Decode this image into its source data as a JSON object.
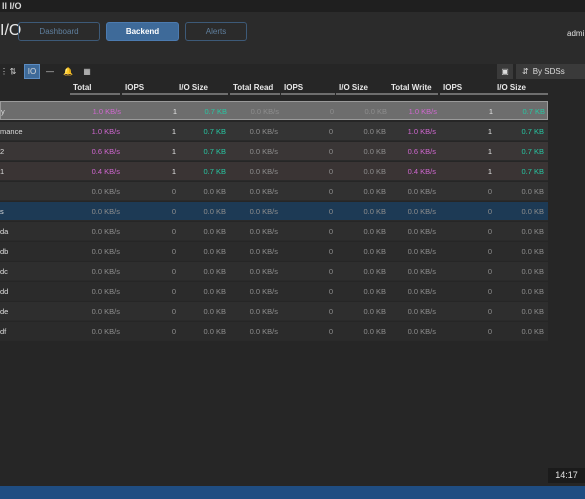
{
  "window": {
    "title": "ll I/O"
  },
  "page": {
    "title": "I/O"
  },
  "tabs": [
    {
      "label": "Dashboard",
      "state": "inactive"
    },
    {
      "label": "Backend",
      "state": "active"
    },
    {
      "label": "Alerts",
      "state": "inactive"
    }
  ],
  "user": {
    "name": "admi"
  },
  "toolbar": {
    "icons": [
      "grid-icon",
      "arrows-updown-icon",
      "io-icon",
      "line-icon",
      "bell-icon",
      "table-icon"
    ],
    "io_label": "IO",
    "grouping_label": "By SDSs"
  },
  "columns": [
    "Total",
    "IOPS",
    "I/O Size",
    "Total Read",
    "IOPS",
    "I/O Size",
    "Total Write",
    "IOPS",
    "I/O Size"
  ],
  "rows": [
    {
      "name": "y",
      "total": "1.0 KB/s",
      "iops": "1",
      "iosize": "0.7 KB",
      "tread": "0.0 KB/s",
      "riops": "0",
      "riosize": "0.0 KB",
      "twrite": "1.0 KB/s",
      "wiops": "1",
      "wiosize": "0.7 KB"
    },
    {
      "name": "mance",
      "total": "1.0 KB/s",
      "iops": "1",
      "iosize": "0.7 KB",
      "tread": "0.0 KB/s",
      "riops": "0",
      "riosize": "0.0 KB",
      "twrite": "1.0 KB/s",
      "wiops": "1",
      "wiosize": "0.7 KB"
    },
    {
      "name": "2",
      "total": "0.6 KB/s",
      "iops": "1",
      "iosize": "0.7 KB",
      "tread": "0.0 KB/s",
      "riops": "0",
      "riosize": "0.0 KB",
      "twrite": "0.6 KB/s",
      "wiops": "1",
      "wiosize": "0.7 KB"
    },
    {
      "name": "1",
      "total": "0.4 KB/s",
      "iops": "1",
      "iosize": "0.7 KB",
      "tread": "0.0 KB/s",
      "riops": "0",
      "riosize": "0.0 KB",
      "twrite": "0.4 KB/s",
      "wiops": "1",
      "wiosize": "0.7 KB"
    },
    {
      "name": "",
      "total": "0.0 KB/s",
      "iops": "0",
      "iosize": "0.0 KB",
      "tread": "0.0 KB/s",
      "riops": "0",
      "riosize": "0.0 KB",
      "twrite": "0.0 KB/s",
      "wiops": "0",
      "wiosize": "0.0 KB"
    },
    {
      "name": "s",
      "total": "0.0 KB/s",
      "iops": "0",
      "iosize": "0.0 KB",
      "tread": "0.0 KB/s",
      "riops": "0",
      "riosize": "0.0 KB",
      "twrite": "0.0 KB/s",
      "wiops": "0",
      "wiosize": "0.0 KB"
    },
    {
      "name": "da",
      "total": "0.0 KB/s",
      "iops": "0",
      "iosize": "0.0 KB",
      "tread": "0.0 KB/s",
      "riops": "0",
      "riosize": "0.0 KB",
      "twrite": "0.0 KB/s",
      "wiops": "0",
      "wiosize": "0.0 KB"
    },
    {
      "name": "db",
      "total": "0.0 KB/s",
      "iops": "0",
      "iosize": "0.0 KB",
      "tread": "0.0 KB/s",
      "riops": "0",
      "riosize": "0.0 KB",
      "twrite": "0.0 KB/s",
      "wiops": "0",
      "wiosize": "0.0 KB"
    },
    {
      "name": "dc",
      "total": "0.0 KB/s",
      "iops": "0",
      "iosize": "0.0 KB",
      "tread": "0.0 KB/s",
      "riops": "0",
      "riosize": "0.0 KB",
      "twrite": "0.0 KB/s",
      "wiops": "0",
      "wiosize": "0.0 KB"
    },
    {
      "name": "dd",
      "total": "0.0 KB/s",
      "iops": "0",
      "iosize": "0.0 KB",
      "tread": "0.0 KB/s",
      "riops": "0",
      "riosize": "0.0 KB",
      "twrite": "0.0 KB/s",
      "wiops": "0",
      "wiosize": "0.0 KB"
    },
    {
      "name": "de",
      "total": "0.0 KB/s",
      "iops": "0",
      "iosize": "0.0 KB",
      "tread": "0.0 KB/s",
      "riops": "0",
      "riosize": "0.0 KB",
      "twrite": "0.0 KB/s",
      "wiops": "0",
      "wiosize": "0.0 KB"
    },
    {
      "name": "df",
      "total": "0.0 KB/s",
      "iops": "0",
      "iosize": "0.0 KB",
      "tread": "0.0 KB/s",
      "riops": "0",
      "riosize": "0.0 KB",
      "twrite": "0.0 KB/s",
      "wiops": "0",
      "wiosize": "0.0 KB"
    }
  ],
  "status": {
    "time": "14:17"
  },
  "colors": {
    "accent": "#3e6a99",
    "pink": "#d067d0",
    "teal": "#27c6a2",
    "selected_row": "#1d3a55"
  }
}
